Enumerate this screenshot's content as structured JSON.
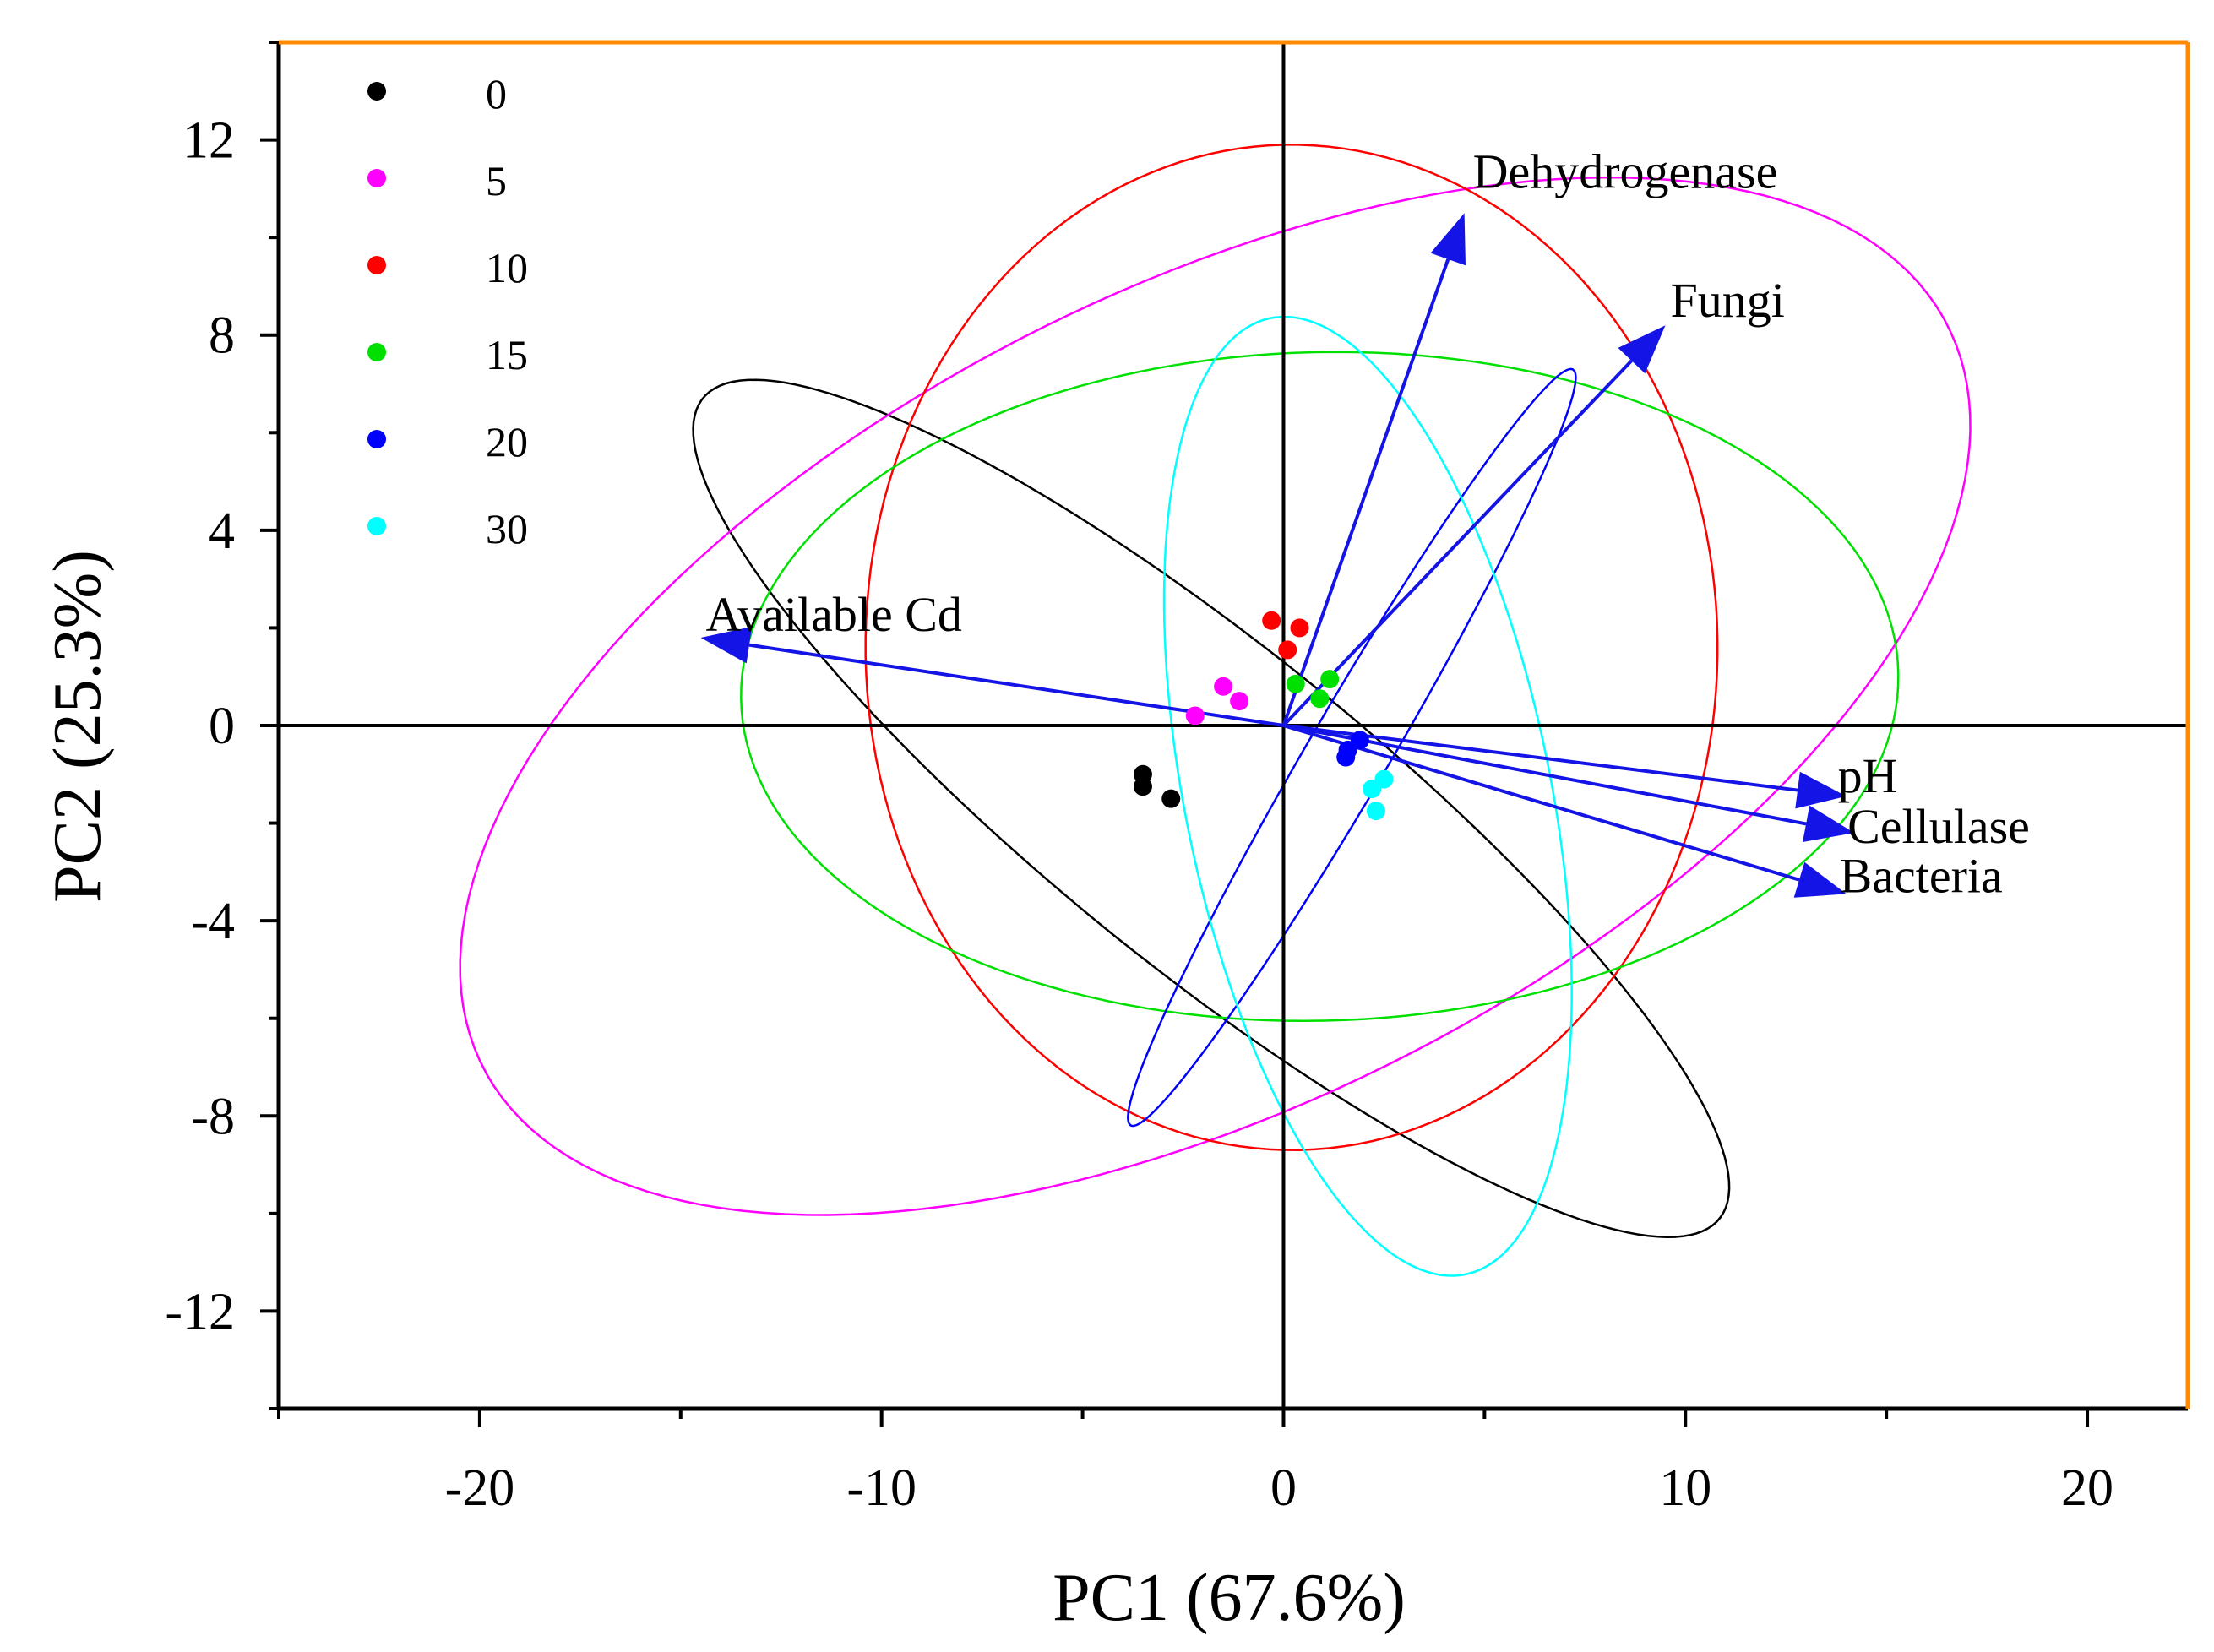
{
  "chart_data": {
    "type": "scatter",
    "subtype": "pca-biplot",
    "xlabel": "PC1 (67.6%)",
    "ylabel": "PC2 (25.3%)",
    "xlim": [
      -25,
      22.5
    ],
    "ylim": [
      -14,
      14
    ],
    "xticks": [
      -20,
      -10,
      0,
      10,
      20
    ],
    "yticks": [
      -12,
      -8,
      -4,
      0,
      4,
      8,
      12
    ],
    "xtick_labels": [
      "-20",
      "-10",
      "0",
      "10",
      "20"
    ],
    "ytick_labels": [
      "-12",
      "-8",
      "-4",
      "0",
      "4",
      "8",
      "12"
    ],
    "zero_lines": true,
    "legend_position": "top-left",
    "colors": {
      "axes": "#000000",
      "frame_top_right": "#ff8a00",
      "arrows": "#1414e6"
    },
    "groups": [
      {
        "name": "0",
        "color": "#000000",
        "points": [
          [
            -3.5,
            -1.0
          ],
          [
            -3.5,
            -1.25
          ],
          [
            -2.8,
            -1.5
          ]
        ],
        "ellipse": {
          "cx": -1.8,
          "cy": -1.7,
          "rx": 15.2,
          "ry": 3.5,
          "angle_deg": -33
        }
      },
      {
        "name": "5",
        "color": "#ff00ff",
        "points": [
          [
            -1.5,
            0.8
          ],
          [
            -1.1,
            0.5
          ],
          [
            -2.2,
            0.2
          ]
        ],
        "ellipse": {
          "cx": -1.7,
          "cy": 0.6,
          "rx": 19.8,
          "ry": 8.6,
          "angle_deg": 20.5
        }
      },
      {
        "name": "10",
        "color": "#ff0000",
        "points": [
          [
            -0.3,
            2.15
          ],
          [
            0.4,
            2.0
          ],
          [
            0.1,
            1.55
          ]
        ],
        "ellipse": {
          "cx": 0.2,
          "cy": 1.6,
          "rx": 10.6,
          "ry": 10.3,
          "angle_deg": -1
        }
      },
      {
        "name": "15",
        "color": "#00e000",
        "points": [
          [
            1.15,
            0.95
          ],
          [
            0.3,
            0.85
          ],
          [
            0.9,
            0.55
          ]
        ],
        "ellipse": {
          "cx": 0.9,
          "cy": 0.8,
          "rx": 14.4,
          "ry": 6.85,
          "angle_deg": 1
        }
      },
      {
        "name": "20",
        "color": "#0000ff",
        "points": [
          [
            1.9,
            -0.3
          ],
          [
            1.6,
            -0.5
          ],
          [
            1.55,
            -0.65
          ]
        ],
        "ellipse": {
          "cx": 1.7,
          "cy": -0.45,
          "rx": 9.5,
          "ry": 0.95,
          "angle_deg": 54.5
        }
      },
      {
        "name": "30",
        "color": "#00ffff",
        "points": [
          [
            2.5,
            -1.1
          ],
          [
            2.2,
            -1.3
          ],
          [
            2.3,
            -1.75
          ]
        ],
        "ellipse": {
          "cx": 2.1,
          "cy": -1.45,
          "rx": 4.5,
          "ry": 10.1,
          "angle_deg": 15
        }
      }
    ],
    "loadings": [
      {
        "name": "Dehydrogenase",
        "x": 4.5,
        "y": 10.5
      },
      {
        "name": "Fungi",
        "x": 9.5,
        "y": 8.2
      },
      {
        "name": "Available Cd",
        "x": -14.5,
        "y": 1.8
      },
      {
        "name": "pH",
        "x": 14.0,
        "y": -1.45
      },
      {
        "name": "Cellulase",
        "x": 14.2,
        "y": -2.2
      },
      {
        "name": "Bacteria",
        "x": 14.0,
        "y": -3.45
      }
    ]
  }
}
